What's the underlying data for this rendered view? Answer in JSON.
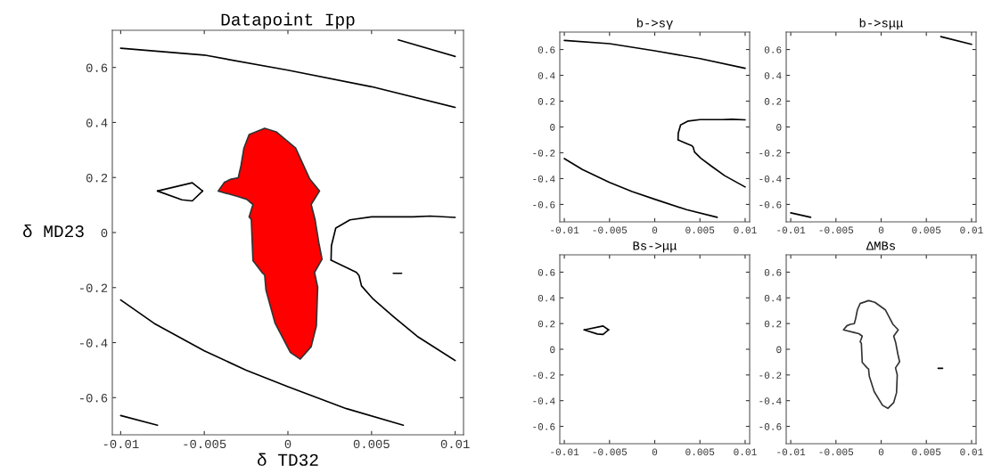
{
  "chart_data": [
    {
      "type": "line",
      "title": "Datapoint Ipp",
      "xlabel": "δ TD32",
      "ylabel": "δ MD23",
      "xlim": [
        -0.0105,
        0.0105
      ],
      "ylim": [
        -0.735,
        0.735
      ],
      "xticks": [
        -0.01,
        -0.005,
        0,
        0.005,
        0.01
      ],
      "yticks": [
        -0.6,
        -0.4,
        -0.2,
        0,
        0.2,
        0.4,
        0.6
      ],
      "series": [
        {
          "type": "area",
          "color": "#ff0000",
          "x": [
            -0.00417,
            -0.00379,
            -0.0034,
            -0.00297,
            -0.00281,
            -0.00263,
            -0.00232,
            -0.00139,
            -0.0007,
            0.00046,
            0.00131,
            0.00189,
            0.00139,
            0.00162,
            0.00185,
            0.00204,
            0.00159,
            0.00178,
            0.0017,
            0.00139,
            0.00074,
            0.00015,
            -0.00077,
            -0.00131,
            -0.00139,
            -0.00155,
            -0.00209,
            -0.00219,
            -0.00232,
            -0.00209,
            -0.00247,
            -0.00301,
            -0.00417
          ],
          "values": [
            0.151,
            0.183,
            0.194,
            0.199,
            0.242,
            0.307,
            0.356,
            0.379,
            0.366,
            0.307,
            0.194,
            0.151,
            0.102,
            0.048,
            -0.038,
            -0.097,
            -0.145,
            -0.199,
            -0.339,
            -0.415,
            -0.46,
            -0.436,
            -0.329,
            -0.21,
            -0.154,
            -0.145,
            -0.102,
            0.048,
            0.057,
            0.102,
            0.121,
            0.131,
            0.151
          ]
        },
        {
          "color": "#000000",
          "x": [
            -0.01,
            -0.005,
            0,
            0.005,
            0.01
          ],
          "values": [
            0.67,
            0.645,
            0.59,
            0.53,
            0.455
          ]
        },
        {
          "color": "#000000",
          "x": [
            0.0066,
            0.01
          ],
          "values": [
            0.7,
            0.64
          ]
        },
        {
          "color": "#000000",
          "x": [
            -0.01,
            -0.008,
            -0.005,
            -0.0025,
            0,
            0.0035,
            0.0069
          ],
          "values": [
            -0.245,
            -0.33,
            -0.43,
            -0.5,
            -0.56,
            -0.64,
            -0.7
          ]
        },
        {
          "color": "#000000",
          "x": [
            -0.01,
            -0.0078
          ],
          "values": [
            -0.665,
            -0.7
          ]
        },
        {
          "color": "#000000",
          "x": [
            -0.0078,
            -0.00572,
            -0.0051
          ],
          "values": [
            0.151,
            0.181,
            0.151
          ]
        },
        {
          "color": "#000000",
          "x": [
            -0.0078,
            -0.00634,
            -0.00572,
            -0.0051
          ],
          "values": [
            0.151,
            0.119,
            0.115,
            0.151
          ]
        },
        {
          "color": "#000000",
          "x": [
            0.01,
            0.0085,
            0.0075,
            0.005,
            0.00371,
            0.00286,
            0.0026,
            0.00258
          ],
          "values": [
            0.055,
            0.06,
            0.057,
            0.057,
            0.046,
            0.016,
            -0.048,
            -0.1
          ]
        },
        {
          "color": "#000000",
          "x": [
            0.00258,
            0.00355,
            0.0041,
            0.00425,
            0.0044,
            0.0051,
            0.00634,
            0.00773,
            0.01
          ],
          "values": [
            -0.1,
            -0.129,
            -0.145,
            -0.156,
            -0.194,
            -0.242,
            -0.307,
            -0.377,
            -0.465
          ]
        },
        {
          "color": "#000000",
          "x": [
            0.0063,
            0.0068
          ],
          "values": [
            -0.148,
            -0.148
          ]
        }
      ]
    },
    {
      "type": "line",
      "title": "b->sγ",
      "xlim": [
        -0.0105,
        0.0105
      ],
      "ylim": [
        -0.735,
        0.735
      ],
      "xticks": [
        -0.01,
        -0.005,
        0,
        0.005,
        0.01
      ],
      "yticks": [
        -0.6,
        -0.4,
        -0.2,
        0,
        0.2,
        0.4,
        0.6
      ],
      "series": [
        {
          "color": "#000000",
          "x": [
            -0.01,
            -0.005,
            0,
            0.005,
            0.01
          ],
          "values": [
            0.67,
            0.645,
            0.59,
            0.53,
            0.455
          ]
        },
        {
          "color": "#000000",
          "x": [
            -0.01,
            -0.008,
            -0.005,
            -0.0025,
            0,
            0.0035,
            0.0069
          ],
          "values": [
            -0.245,
            -0.33,
            -0.43,
            -0.5,
            -0.56,
            -0.64,
            -0.7
          ]
        },
        {
          "color": "#000000",
          "x": [
            0.01,
            0.0085,
            0.0075,
            0.005,
            0.00371,
            0.00286,
            0.0026,
            0.00258
          ],
          "values": [
            0.055,
            0.06,
            0.057,
            0.057,
            0.046,
            0.016,
            -0.048,
            -0.1
          ]
        },
        {
          "color": "#000000",
          "x": [
            0.00258,
            0.00355,
            0.0041,
            0.00425,
            0.0044,
            0.0051,
            0.00634,
            0.00773,
            0.01
          ],
          "values": [
            -0.1,
            -0.129,
            -0.145,
            -0.156,
            -0.194,
            -0.242,
            -0.307,
            -0.377,
            -0.465
          ]
        }
      ]
    },
    {
      "type": "line",
      "title": "b->sμμ",
      "xlim": [
        -0.0105,
        0.0105
      ],
      "ylim": [
        -0.735,
        0.735
      ],
      "xticks": [
        -0.01,
        -0.005,
        0,
        0.005,
        0.01
      ],
      "yticks": [
        -0.6,
        -0.4,
        -0.2,
        0,
        0.2,
        0.4,
        0.6
      ],
      "series": [
        {
          "color": "#000000",
          "x": [
            0.0066,
            0.01
          ],
          "values": [
            0.7,
            0.64
          ]
        },
        {
          "color": "#000000",
          "x": [
            -0.01,
            -0.0078
          ],
          "values": [
            -0.665,
            -0.7
          ]
        }
      ]
    },
    {
      "type": "line",
      "title": "Bs->μμ",
      "xlim": [
        -0.0105,
        0.0105
      ],
      "ylim": [
        -0.735,
        0.735
      ],
      "xticks": [
        -0.01,
        -0.005,
        0,
        0.005,
        0.01
      ],
      "yticks": [
        -0.6,
        -0.4,
        -0.2,
        0,
        0.2,
        0.4,
        0.6
      ],
      "series": [
        {
          "color": "#000000",
          "x": [
            -0.0078,
            -0.00572,
            -0.0051
          ],
          "values": [
            0.151,
            0.181,
            0.151
          ]
        },
        {
          "color": "#000000",
          "x": [
            -0.0078,
            -0.00634,
            -0.00572,
            -0.0051
          ],
          "values": [
            0.151,
            0.119,
            0.115,
            0.151
          ]
        }
      ]
    },
    {
      "type": "line",
      "title": "ΔMBs",
      "xlim": [
        -0.0105,
        0.0105
      ],
      "ylim": [
        -0.735,
        0.735
      ],
      "xticks": [
        -0.01,
        -0.005,
        0,
        0.005,
        0.01
      ],
      "yticks": [
        -0.6,
        -0.4,
        -0.2,
        0,
        0.2,
        0.4,
        0.6
      ],
      "series": [
        {
          "type": "area",
          "color": "#ffffff",
          "x": [
            -0.00417,
            -0.00379,
            -0.0034,
            -0.00297,
            -0.00281,
            -0.00263,
            -0.00232,
            -0.00139,
            -0.0007,
            0.00046,
            0.00131,
            0.00189,
            0.00139,
            0.00162,
            0.00185,
            0.00204,
            0.00159,
            0.00178,
            0.0017,
            0.00139,
            0.00074,
            0.00015,
            -0.00077,
            -0.00131,
            -0.00139,
            -0.00155,
            -0.00209,
            -0.00219,
            -0.00232,
            -0.00209,
            -0.00247,
            -0.00301,
            -0.00417
          ],
          "values": [
            0.151,
            0.183,
            0.194,
            0.199,
            0.242,
            0.307,
            0.356,
            0.379,
            0.366,
            0.307,
            0.194,
            0.151,
            0.102,
            0.048,
            -0.038,
            -0.097,
            -0.145,
            -0.199,
            -0.339,
            -0.415,
            -0.46,
            -0.436,
            -0.329,
            -0.21,
            -0.154,
            -0.145,
            -0.102,
            0.048,
            0.057,
            0.102,
            0.121,
            0.131,
            0.151
          ]
        },
        {
          "color": "#000000",
          "x": [
            0.0063,
            0.0068
          ],
          "values": [
            -0.148,
            -0.148
          ]
        }
      ]
    }
  ]
}
